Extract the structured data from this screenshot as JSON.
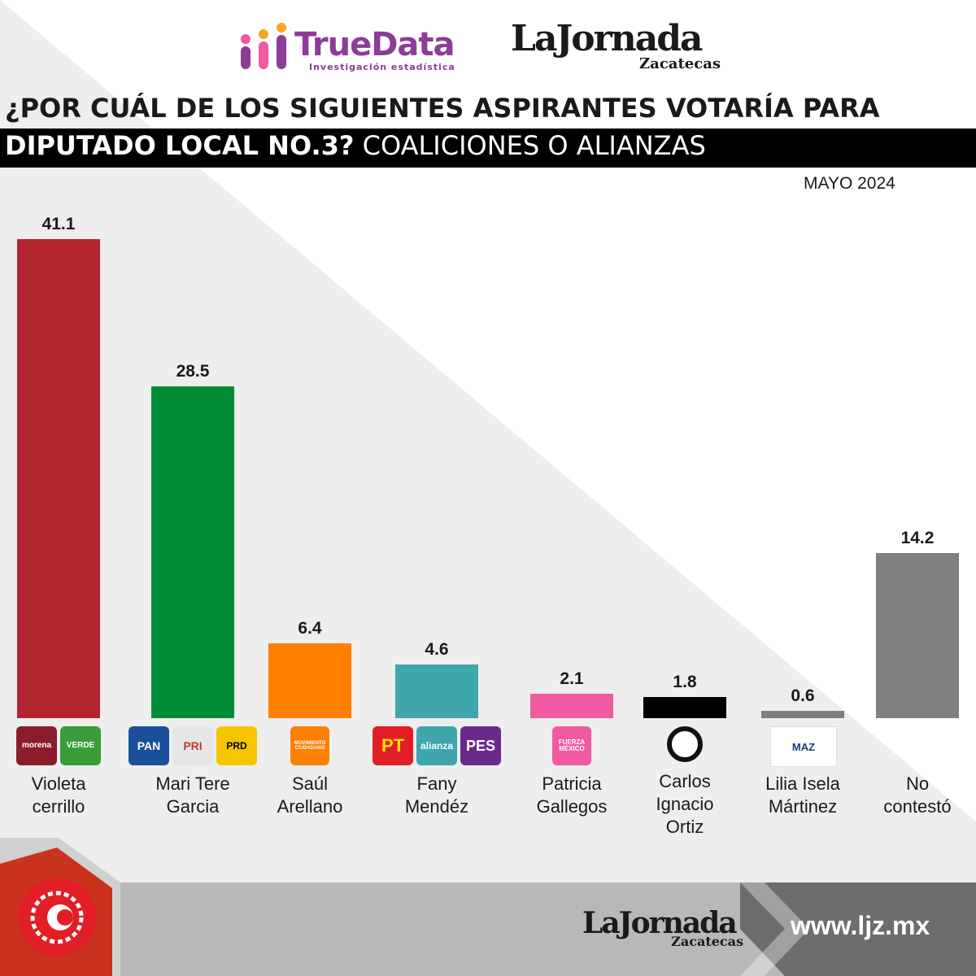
{
  "logos": {
    "truedata_name": "TrueData",
    "truedata_tagline": "Investigación estadística",
    "jornada_name": "LaJornada",
    "jornada_city": "Zacatecas"
  },
  "header": {
    "question_line1": "¿POR CUÁL DE LOS SIGUIENTES ASPIRANTES VOTARÍA PARA",
    "question_line2_bold": "DIPUTADO LOCAL NO.3?",
    "question_line2_rest": " COALICIONES O ALIANZAS",
    "date": "MAYO 2024"
  },
  "party_logos": [
    [
      "morena",
      "VERDE"
    ],
    [
      "PAN",
      "PRI",
      "PRD"
    ],
    [
      "MOVIMIENTO CIUDADANO"
    ],
    [
      "PT",
      "alianza",
      "PES"
    ],
    [
      "FUERZA MÉXICO"
    ],
    [
      ""
    ],
    [
      "MAZ"
    ],
    []
  ],
  "chart_data": {
    "type": "bar",
    "categories": [
      "Violeta\ncerrillo",
      "Mari Tere\nGarcia",
      "Saúl\nArellano",
      "Fany\nMendéz",
      "Patricia\nGallegos",
      "Carlos\nIgnacio\nOrtiz",
      "Lilia Isela\nMártinez",
      "No\ncontestó"
    ],
    "values": [
      41.1,
      28.5,
      6.4,
      4.6,
      2.1,
      1.8,
      0.6,
      14.2
    ],
    "value_labels": [
      "41.1",
      "28.5",
      "6.4",
      "4.6",
      "2.1",
      "1.8",
      "0.6",
      "14.2"
    ],
    "colors": [
      "#b3252e",
      "#008c36",
      "#ff7f00",
      "#3ea6ac",
      "#f05aa0",
      "#000000",
      "#7f7f7f",
      "#808080"
    ],
    "title": "¿POR CUÁL DE LOS SIGUIENTES ASPIRANTES VOTARÍA PARA DIPUTADO LOCAL NO.3? COALICIONES O ALIANZAS",
    "xlabel": "",
    "ylabel": "",
    "ylim": [
      0,
      41.1
    ],
    "grid": false,
    "legend": "none"
  },
  "footer": {
    "url": "www.ljz.mx",
    "jornada_name": "LaJornada",
    "jornada_city": "Zacatecas"
  }
}
